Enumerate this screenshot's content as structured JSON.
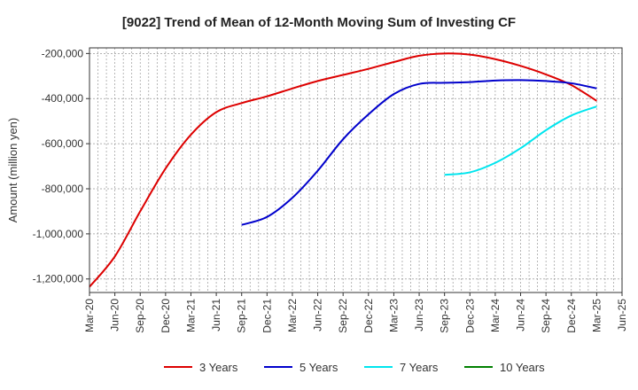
{
  "chart_data": {
    "type": "line",
    "title": "[9022]  Trend of Mean of 12-Month Moving Sum of Investing CF",
    "xlabel": "",
    "ylabel": "Amount (million yen)",
    "ylim": [
      -1260000,
      -175000
    ],
    "yticks": [
      -200000,
      -400000,
      -600000,
      -800000,
      -1000000,
      -1200000
    ],
    "ytick_labels": [
      "-200,000",
      "-400,000",
      "-600,000",
      "-800,000",
      "-1,000,000",
      "-1,200,000"
    ],
    "xticks": [
      "Mar-20",
      "Jun-20",
      "Sep-20",
      "Dec-20",
      "Mar-21",
      "Jun-21",
      "Sep-21",
      "Dec-21",
      "Mar-22",
      "Jun-22",
      "Sep-22",
      "Dec-22",
      "Mar-23",
      "Jun-23",
      "Sep-23",
      "Dec-23",
      "Mar-24",
      "Jun-24",
      "Sep-24",
      "Dec-24",
      "Mar-25",
      "Jun-25"
    ],
    "grid": true,
    "legend_position": "bottom",
    "series": [
      {
        "name": "3 Years",
        "color": "#dd0000",
        "points": [
          [
            "Mar-20",
            -1235000
          ],
          [
            "Jun-20",
            -1100000
          ],
          [
            "Sep-20",
            -900000
          ],
          [
            "Dec-20",
            -710000
          ],
          [
            "Mar-21",
            -560000
          ],
          [
            "Jun-21",
            -460000
          ],
          [
            "Sep-21",
            -420000
          ],
          [
            "Dec-21",
            -390000
          ],
          [
            "Mar-22",
            -355000
          ],
          [
            "Jun-22",
            -322000
          ],
          [
            "Sep-22",
            -295000
          ],
          [
            "Dec-22",
            -268000
          ],
          [
            "Mar-23",
            -238000
          ],
          [
            "Jun-23",
            -210000
          ],
          [
            "Sep-23",
            -200000
          ],
          [
            "Dec-23",
            -205000
          ],
          [
            "Mar-24",
            -225000
          ],
          [
            "Jun-24",
            -255000
          ],
          [
            "Sep-24",
            -293000
          ],
          [
            "Dec-24",
            -340000
          ],
          [
            "Mar-25",
            -410000
          ]
        ]
      },
      {
        "name": "5 Years",
        "color": "#0000cc",
        "points": [
          [
            "Sep-21",
            -960000
          ],
          [
            "Dec-21",
            -925000
          ],
          [
            "Mar-22",
            -840000
          ],
          [
            "Jun-22",
            -720000
          ],
          [
            "Sep-22",
            -580000
          ],
          [
            "Dec-22",
            -470000
          ],
          [
            "Mar-23",
            -380000
          ],
          [
            "Jun-23",
            -335000
          ],
          [
            "Sep-23",
            -330000
          ],
          [
            "Dec-23",
            -327000
          ],
          [
            "Mar-24",
            -320000
          ],
          [
            "Jun-24",
            -318000
          ],
          [
            "Sep-24",
            -322000
          ],
          [
            "Dec-24",
            -332000
          ],
          [
            "Mar-25",
            -355000
          ]
        ]
      },
      {
        "name": "7 Years",
        "color": "#00e5ee",
        "points": [
          [
            "Sep-23",
            -738000
          ],
          [
            "Dec-23",
            -727000
          ],
          [
            "Mar-24",
            -685000
          ],
          [
            "Jun-24",
            -620000
          ],
          [
            "Sep-24",
            -540000
          ],
          [
            "Dec-24",
            -475000
          ],
          [
            "Mar-25",
            -435000
          ]
        ]
      },
      {
        "name": "10 Years",
        "color": "#008000",
        "points": []
      }
    ]
  }
}
